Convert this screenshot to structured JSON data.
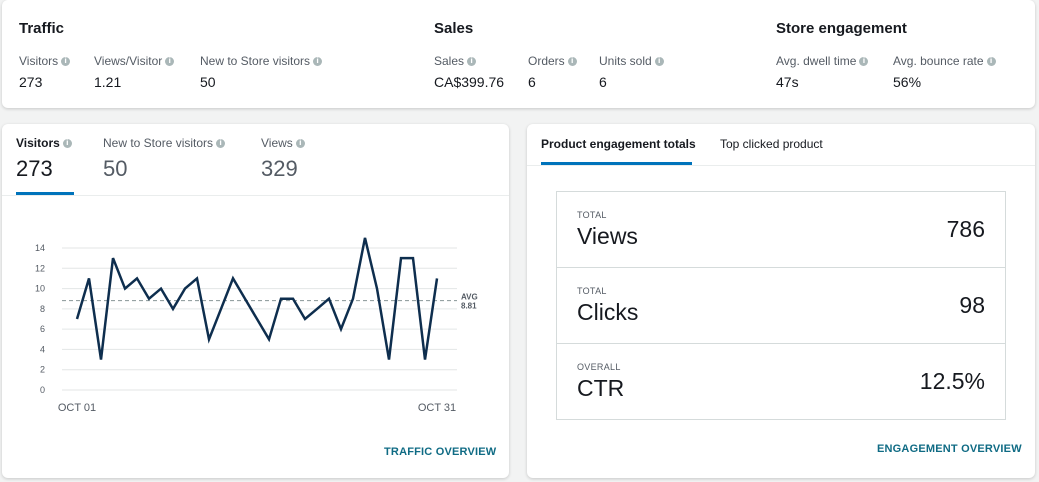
{
  "summary": {
    "traffic": {
      "title": "Traffic",
      "metrics": [
        {
          "label": "Visitors",
          "value": "273"
        },
        {
          "label": "Views/Visitor",
          "value": "1.21"
        },
        {
          "label": "New to Store visitors",
          "value": "50"
        }
      ]
    },
    "sales": {
      "title": "Sales",
      "metrics": [
        {
          "label": "Sales",
          "value": "CA$399.76"
        },
        {
          "label": "Orders",
          "value": "6"
        },
        {
          "label": "Units sold",
          "value": "6"
        }
      ]
    },
    "engagement": {
      "title": "Store engagement",
      "metrics": [
        {
          "label": "Avg. dwell time",
          "value": "47s"
        },
        {
          "label": "Avg. bounce rate",
          "value": "56%"
        }
      ]
    }
  },
  "traffic_card": {
    "tabs": [
      {
        "label": "Visitors",
        "value": "273"
      },
      {
        "label": "New to Store visitors",
        "value": "50"
      },
      {
        "label": "Views",
        "value": "329"
      }
    ],
    "active_tab": 0,
    "footer_link": "TRAFFIC OVERVIEW"
  },
  "engagement_card": {
    "tabs": [
      {
        "label": "Product engagement totals"
      },
      {
        "label": "Top clicked product"
      }
    ],
    "active_tab": 0,
    "stats": [
      {
        "kicker": "TOTAL",
        "name": "Views",
        "value": "786"
      },
      {
        "kicker": "TOTAL",
        "name": "Clicks",
        "value": "98"
      },
      {
        "kicker": "OVERALL",
        "name": "CTR",
        "value": "12.5%"
      }
    ],
    "footer_link": "ENGAGEMENT OVERVIEW"
  },
  "icons": {
    "info": "info-icon"
  },
  "colors": {
    "accent": "#0073bb",
    "line": "#0e2e4e",
    "link": "#0f6b84"
  },
  "chart_data": {
    "type": "line",
    "x_tick_labels": [
      "OCT 01",
      "OCT 31"
    ],
    "y_ticks": [
      0,
      2,
      4,
      6,
      8,
      10,
      12,
      14
    ],
    "ylim": [
      0,
      14
    ],
    "grid": true,
    "series": [
      {
        "values": [
          7,
          11,
          3,
          13,
          10,
          11,
          9,
          10,
          8,
          10,
          11,
          5,
          8,
          11,
          9,
          7,
          5,
          9,
          9,
          7,
          8,
          9,
          6,
          9,
          15,
          10,
          3,
          13,
          13,
          3,
          11
        ]
      }
    ],
    "avg": {
      "label": "AVG",
      "value": "8.81"
    }
  }
}
